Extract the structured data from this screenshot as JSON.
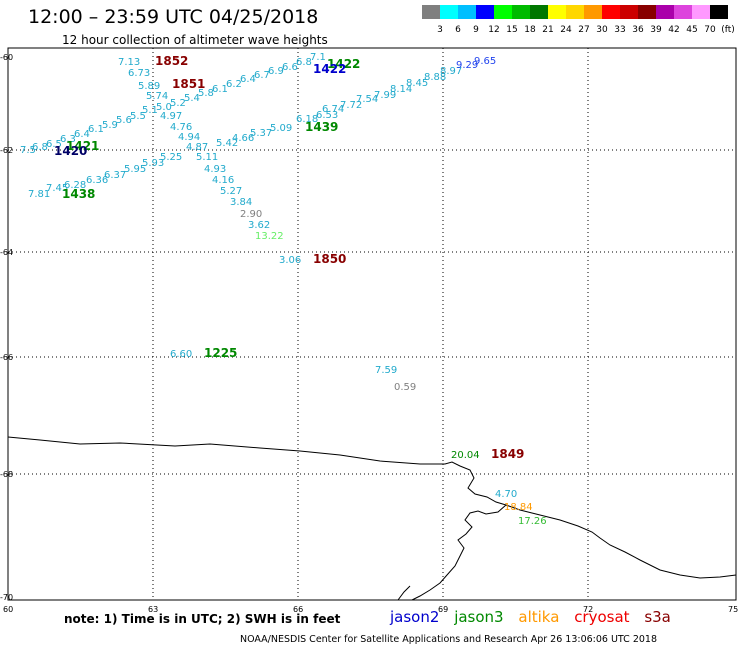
{
  "header": {
    "title": "12:00 – 23:59 UTC 04/25/2018",
    "subtitle": "12 hour collection of altimeter wave heights"
  },
  "color_scale": {
    "unit": "(ft)",
    "items": [
      {
        "label": "3",
        "color": "#7f7f7f"
      },
      {
        "label": "6",
        "color": "#00ffff"
      },
      {
        "label": "9",
        "color": "#00bfff"
      },
      {
        "label": "12",
        "color": "#0000ff"
      },
      {
        "label": "15",
        "color": "#00ff00"
      },
      {
        "label": "18",
        "color": "#00bb00"
      },
      {
        "label": "21",
        "color": "#007700"
      },
      {
        "label": "24",
        "color": "#ffff00"
      },
      {
        "label": "27",
        "color": "#ffd700"
      },
      {
        "label": "30",
        "color": "#ff9900"
      },
      {
        "label": "33",
        "color": "#ff0000"
      },
      {
        "label": "36",
        "color": "#cc0000"
      },
      {
        "label": "39",
        "color": "#880000"
      },
      {
        "label": "42",
        "color": "#aa00aa"
      },
      {
        "label": "45",
        "color": "#dd44dd"
      },
      {
        "label": "70",
        "color": "#ff99ff"
      },
      {
        "label": "",
        "color": "#000000"
      }
    ]
  },
  "axes": {
    "lon_labels": [
      "60",
      "63",
      "66",
      "69",
      "72",
      "75"
    ],
    "lat_labels": [
      "-60",
      "-62",
      "-64",
      "-66",
      "-68",
      "-70"
    ]
  },
  "wave_values": [
    {
      "text": "7.13",
      "color": "#22aacc"
    },
    {
      "text": "6.73",
      "color": "#22aacc"
    },
    {
      "text": "5.89",
      "color": "#22aacc"
    },
    {
      "text": "5.74",
      "color": "#22aacc"
    },
    {
      "text": "4.97",
      "color": "#22aacc"
    },
    {
      "text": "4.76",
      "color": "#22aacc"
    },
    {
      "text": "4.94",
      "color": "#22aacc"
    },
    {
      "text": "4.87",
      "color": "#22aacc"
    },
    {
      "text": "5.11",
      "color": "#22aacc"
    },
    {
      "text": "4.93",
      "color": "#22aacc"
    },
    {
      "text": "4.16",
      "color": "#22aacc"
    },
    {
      "text": "5.27",
      "color": "#22aacc"
    },
    {
      "text": "3.84",
      "color": "#22aacc"
    },
    {
      "text": "2.90",
      "color": "#808080"
    },
    {
      "text": "3.62",
      "color": "#22aacc"
    },
    {
      "text": "13.22",
      "color": "#66ee66"
    },
    {
      "text": "5.42",
      "color": "#22aacc"
    },
    {
      "text": "4.66",
      "color": "#22aacc"
    },
    {
      "text": "5.37",
      "color": "#22aacc"
    },
    {
      "text": "5.09",
      "color": "#22aacc"
    },
    {
      "text": "6.18",
      "color": "#22aacc"
    },
    {
      "text": "6.53",
      "color": "#22aacc"
    },
    {
      "text": "6.74",
      "color": "#22aacc"
    },
    {
      "text": "7.72",
      "color": "#22aacc"
    },
    {
      "text": "7.54",
      "color": "#22aacc"
    },
    {
      "text": "7.99",
      "color": "#22aacc"
    },
    {
      "text": "8.14",
      "color": "#22aacc"
    },
    {
      "text": "8.45",
      "color": "#22aacc"
    },
    {
      "text": "8.88",
      "color": "#22aacc"
    },
    {
      "text": "8.97",
      "color": "#22aacc"
    },
    {
      "text": "9.29",
      "color": "#2244ee"
    },
    {
      "text": "9.65",
      "color": "#2244ee"
    },
    {
      "text": "5.25",
      "color": "#22aacc"
    },
    {
      "text": "5.93",
      "color": "#22aacc"
    },
    {
      "text": "5.95",
      "color": "#22aacc"
    },
    {
      "text": "6.37",
      "color": "#22aacc"
    },
    {
      "text": "6.36",
      "color": "#22aacc"
    },
    {
      "text": "6.28",
      "color": "#22aacc"
    },
    {
      "text": "7.45",
      "color": "#22aacc"
    },
    {
      "text": "7.81",
      "color": "#22aacc"
    },
    {
      "text": "3.06",
      "color": "#22aacc"
    },
    {
      "text": "6.60",
      "color": "#22aacc"
    },
    {
      "text": "7.59",
      "color": "#22aacc"
    },
    {
      "text": "0.59",
      "color": "#808080"
    },
    {
      "text": "20.04",
      "color": "#008800"
    },
    {
      "text": "4.70",
      "color": "#22aacc"
    },
    {
      "text": "18.84",
      "color": "#ff9900"
    },
    {
      "text": "17.26",
      "color": "#33bb33"
    }
  ],
  "time_labels": [
    {
      "text": "1852",
      "color": "#880000"
    },
    {
      "text": "1851",
      "color": "#880000"
    },
    {
      "text": "1422",
      "color": "#008800"
    },
    {
      "text": "1422",
      "color": "#0000cc"
    },
    {
      "text": "1439",
      "color": "#008800"
    },
    {
      "text": "1421",
      "color": "#008800"
    },
    {
      "text": "1420",
      "color": "#000066"
    },
    {
      "text": "1438",
      "color": "#008800"
    },
    {
      "text": "1850",
      "color": "#880000"
    },
    {
      "text": "1225",
      "color": "#008800"
    },
    {
      "text": "1849",
      "color": "#880000"
    }
  ],
  "footer": {
    "note": "note:  1) Time is in UTC;  2) SWH is in feet",
    "credit": "NOAA/NESDIS Center for Satellite Applications and Research     Apr 26 13:06:06 UTC 2018",
    "satellites": [
      {
        "name": "jason2",
        "color": "#0000cc"
      },
      {
        "name": "jason3",
        "color": "#008800"
      },
      {
        "name": "altika",
        "color": "#ff9900"
      },
      {
        "name": "cryosat",
        "color": "#ee0000"
      },
      {
        "name": "s3a",
        "color": "#880000"
      }
    ]
  }
}
